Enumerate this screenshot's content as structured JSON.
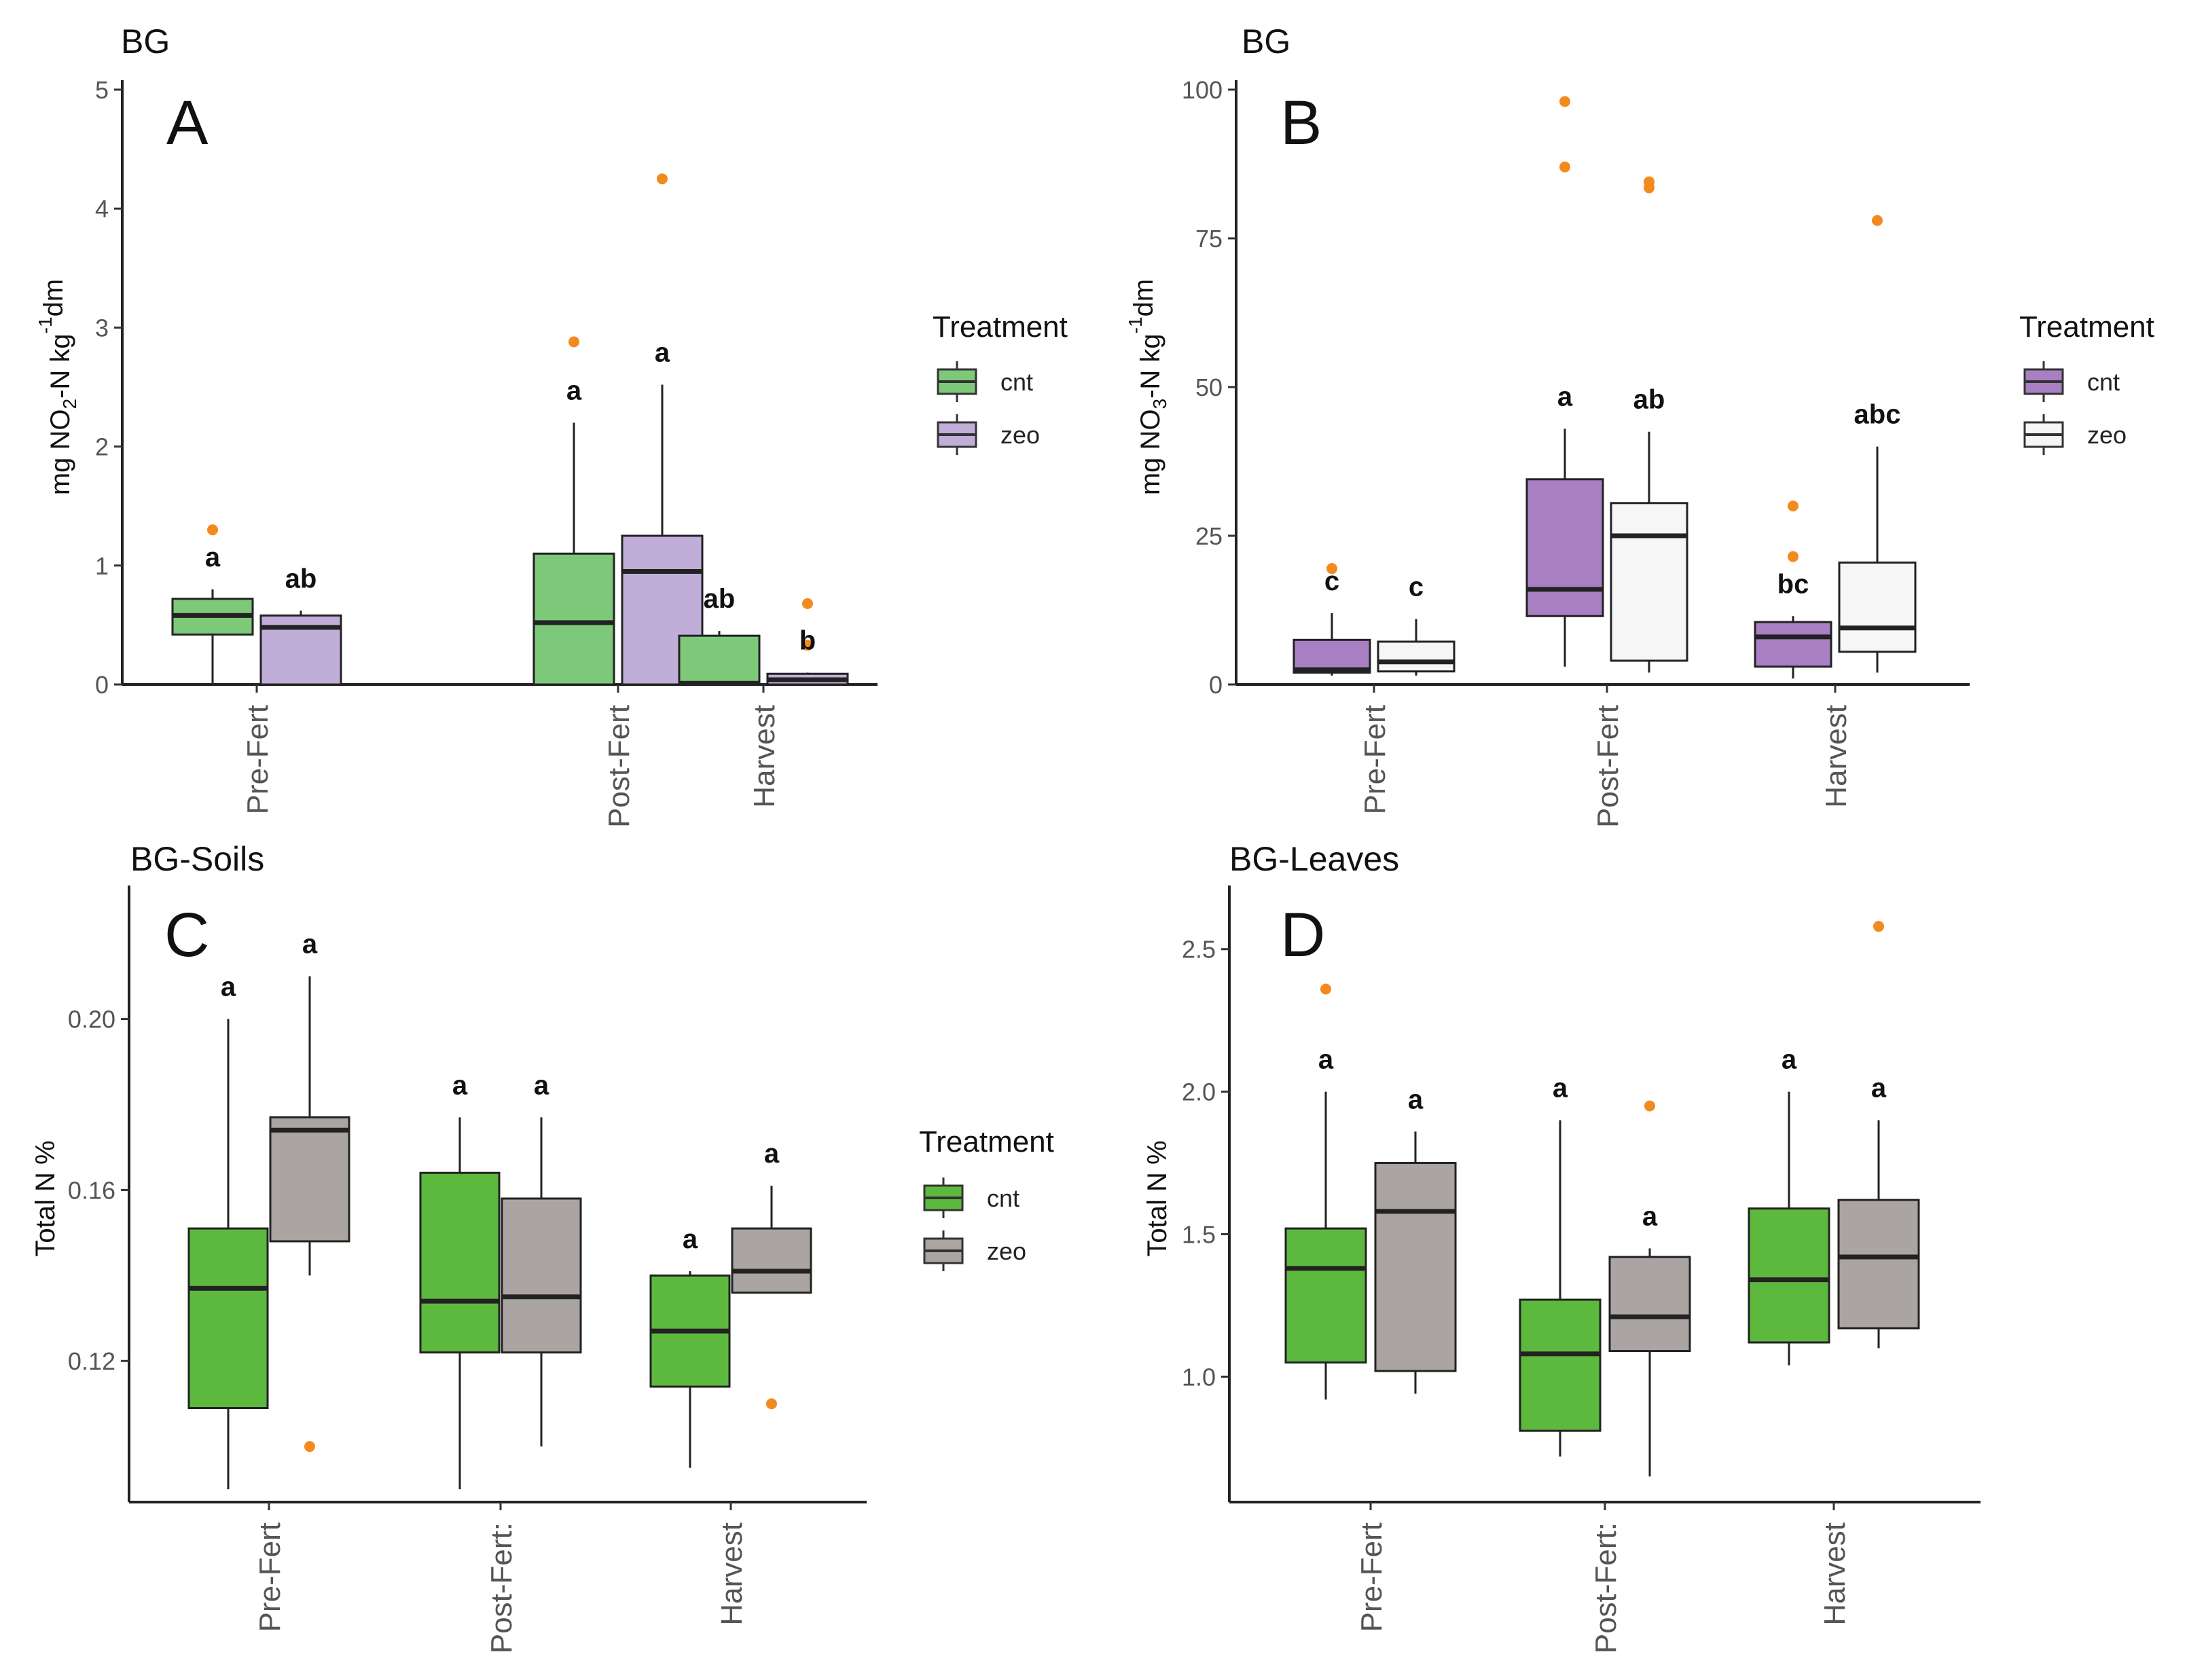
{
  "chart_data": [
    {
      "type": "box",
      "panel": "A",
      "title": "BG",
      "ylabel_parts": [
        "mg NO",
        "2",
        "-N kg",
        "-1",
        "dm"
      ],
      "ylim": [
        0,
        5
      ],
      "yticks": [
        0,
        1,
        2,
        3,
        4,
        5
      ],
      "categories": [
        "Pre-Fert",
        "Post-Fert",
        "Harvest"
      ],
      "legend": {
        "title": "Treatment",
        "entries": [
          {
            "name": "cnt",
            "color": "#7ec87a"
          },
          {
            "name": "zeo",
            "color": "#c0aed9"
          }
        ]
      },
      "boxes": [
        {
          "category": "Pre-Fert",
          "series": "cnt",
          "min": 0,
          "q1": 0.42,
          "median": 0.58,
          "q3": 0.72,
          "max": 0.8,
          "outliers": [
            1.3
          ],
          "label": "a"
        },
        {
          "category": "Pre-Fert",
          "series": "zeo",
          "min": 0,
          "q1": 0,
          "median": 0.48,
          "q3": 0.58,
          "max": 0.62,
          "outliers": [],
          "label": "ab"
        },
        {
          "category": "Post-Fert",
          "series": "cnt",
          "min": 0,
          "q1": 0,
          "median": 0.52,
          "q3": 1.1,
          "max": 2.2,
          "outliers": [
            2.88
          ],
          "label": "a"
        },
        {
          "category": "Post-Fert",
          "series": "zeo",
          "min": 0,
          "q1": 0,
          "median": 0.95,
          "q3": 1.25,
          "max": 2.52,
          "outliers": [
            4.25
          ],
          "label": "a"
        },
        {
          "category": "Harvest",
          "series": "cnt",
          "min": 0,
          "q1": 0,
          "median": 0.01,
          "q3": 0.41,
          "max": 0.45,
          "outliers": [],
          "label": "ab"
        },
        {
          "category": "Harvest",
          "series": "zeo",
          "min": 0,
          "q1": 0,
          "median": 0.04,
          "q3": 0.09,
          "max": 0.1,
          "outliers": [
            0.68,
            0.33
          ],
          "label": "b"
        }
      ]
    },
    {
      "type": "box",
      "panel": "B",
      "title": "BG",
      "ylabel_parts": [
        "mg NO",
        "3",
        "-N kg",
        "-1",
        "dm"
      ],
      "ylim": [
        0,
        100
      ],
      "yticks": [
        0,
        25,
        50,
        75,
        100
      ],
      "categories": [
        "Pre-Fert",
        "Post-Fert",
        "Harvest"
      ],
      "legend": {
        "title": "Treatment",
        "entries": [
          {
            "name": "cnt",
            "color": "#a97fc4"
          },
          {
            "name": "zeo",
            "color": "#f6f6f6"
          }
        ]
      },
      "boxes": [
        {
          "category": "Pre-Fert",
          "series": "cnt",
          "min": 1.5,
          "q1": 2,
          "median": 2.5,
          "q3": 7.5,
          "max": 12,
          "outliers": [
            19.5
          ],
          "label": "c"
        },
        {
          "category": "Pre-Fert",
          "series": "zeo",
          "min": 1.5,
          "q1": 2.2,
          "median": 3.8,
          "q3": 7.2,
          "max": 11,
          "outliers": [],
          "label": "c"
        },
        {
          "category": "Post-Fert",
          "series": "cnt",
          "min": 3,
          "q1": 11.5,
          "median": 16,
          "q3": 34.5,
          "max": 43,
          "outliers": [
            98,
            87
          ],
          "label": "a"
        },
        {
          "category": "Post-Fert",
          "series": "zeo",
          "min": 2,
          "q1": 4,
          "median": 25,
          "q3": 30.5,
          "max": 42.5,
          "outliers": [
            84.5,
            83.5
          ],
          "label": "ab"
        },
        {
          "category": "Harvest",
          "series": "cnt",
          "min": 1,
          "q1": 3,
          "median": 8,
          "q3": 10.5,
          "max": 11.5,
          "outliers": [
            30,
            21.5
          ],
          "label": "bc"
        },
        {
          "category": "Harvest",
          "series": "zeo",
          "min": 2,
          "q1": 5.5,
          "median": 9.5,
          "q3": 20.5,
          "max": 40,
          "outliers": [
            78
          ],
          "label": "abc"
        }
      ]
    },
    {
      "type": "box",
      "panel": "C",
      "title": "BG-Soils",
      "ylabel_parts": [
        "Total N %"
      ],
      "ylim": [
        0.087,
        0.229
      ],
      "yticks": [
        0.12,
        0.16,
        0.2
      ],
      "ytick_labels": [
        "0.12",
        "0.16",
        "0.20"
      ],
      "categories": [
        "Pre-Fert",
        "Post-Fert:",
        "Harvest"
      ],
      "legend": {
        "title": "Treatment",
        "entries": [
          {
            "name": "cnt",
            "color": "#5db93e"
          },
          {
            "name": "zeo",
            "color": "#aaa5a2"
          }
        ]
      },
      "boxes": [
        {
          "category": "Pre-Fert",
          "series": "cnt",
          "min": 0.09,
          "q1": 0.109,
          "median": 0.137,
          "q3": 0.151,
          "max": 0.2,
          "outliers": [],
          "label": "a"
        },
        {
          "category": "Pre-Fert",
          "series": "zeo",
          "min": 0.14,
          "q1": 0.148,
          "median": 0.174,
          "q3": 0.177,
          "max": 0.21,
          "outliers": [
            0.1
          ],
          "label": "a"
        },
        {
          "category": "Post-Fert:",
          "series": "cnt",
          "min": 0.09,
          "q1": 0.122,
          "median": 0.134,
          "q3": 0.164,
          "max": 0.177,
          "outliers": [],
          "label": "a"
        },
        {
          "category": "Post-Fert:",
          "series": "zeo",
          "min": 0.1,
          "q1": 0.122,
          "median": 0.135,
          "q3": 0.158,
          "max": 0.177,
          "outliers": [],
          "label": "a"
        },
        {
          "category": "Harvest",
          "series": "cnt",
          "min": 0.095,
          "q1": 0.114,
          "median": 0.127,
          "q3": 0.14,
          "max": 0.141,
          "outliers": [],
          "label": "a"
        },
        {
          "category": "Harvest",
          "series": "zeo",
          "min": 0.136,
          "q1": 0.136,
          "median": 0.141,
          "q3": 0.151,
          "max": 0.161,
          "outliers": [
            0.11
          ],
          "label": "a"
        }
      ]
    },
    {
      "type": "box",
      "panel": "D",
      "title": "BG-Leaves",
      "ylabel_parts": [
        "Total N %"
      ],
      "ylim": [
        0.56,
        2.69
      ],
      "yticks": [
        1.0,
        1.5,
        2.0,
        2.5
      ],
      "ytick_labels": [
        "1.0",
        "1.5",
        "2.0",
        "2.5"
      ],
      "categories": [
        "Pre-Fert",
        "Post-Fert:",
        "Harvest"
      ],
      "legend": null,
      "boxes": [
        {
          "category": "Pre-Fert",
          "series": "cnt",
          "min": 0.92,
          "q1": 1.05,
          "median": 1.38,
          "q3": 1.52,
          "max": 2.0,
          "outliers": [
            2.36
          ],
          "label": "a"
        },
        {
          "category": "Pre-Fert",
          "series": "zeo",
          "min": 0.94,
          "q1": 1.02,
          "median": 1.58,
          "q3": 1.75,
          "max": 1.86,
          "outliers": [],
          "label": "a"
        },
        {
          "category": "Post-Fert:",
          "series": "cnt",
          "min": 0.72,
          "q1": 0.81,
          "median": 1.08,
          "q3": 1.27,
          "max": 1.9,
          "outliers": [],
          "label": "a"
        },
        {
          "category": "Post-Fert:",
          "series": "zeo",
          "min": 0.65,
          "q1": 1.09,
          "median": 1.21,
          "q3": 1.42,
          "max": 1.45,
          "outliers": [
            1.95
          ],
          "label": "a"
        },
        {
          "category": "Harvest",
          "series": "cnt",
          "min": 1.04,
          "q1": 1.12,
          "median": 1.34,
          "q3": 1.59,
          "max": 2.0,
          "outliers": [],
          "label": "a"
        },
        {
          "category": "Harvest",
          "series": "zeo",
          "min": 1.1,
          "q1": 1.17,
          "median": 1.42,
          "q3": 1.62,
          "max": 1.9,
          "outliers": [
            2.58
          ],
          "label": "a"
        }
      ]
    }
  ]
}
